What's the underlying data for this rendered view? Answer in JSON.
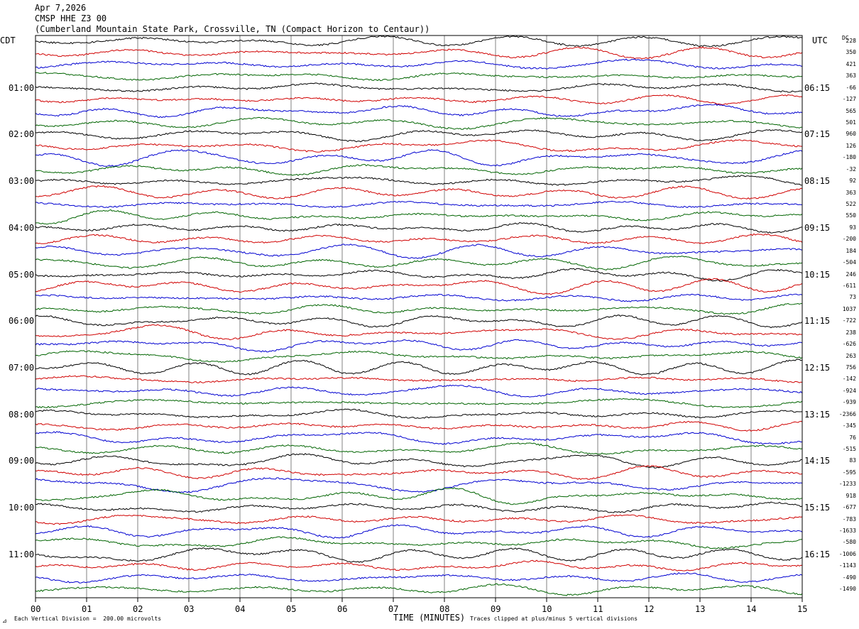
{
  "header": {
    "date": "Apr 7,2026",
    "station": "CMSP HHE Z3 00",
    "location": "(Cumberland Mountain State Park, Crossville, TN (Compact Horizon to Centaur))"
  },
  "left_axis_title": "CDT",
  "right_axis_title": "UTC",
  "dc_title": "DC",
  "footer": {
    "scale_note": "Each Vertical Division =  200.00 microvolts",
    "x_title": "TIME (MINUTES)",
    "clip_note": "Traces clipped at plus/minus 5 vertical divisions"
  },
  "chart_data": {
    "type": "line",
    "subtype": "helicorder",
    "xlabel": "TIME (MINUTES)",
    "xlim": [
      0,
      15
    ],
    "x_ticks": [
      "00",
      "01",
      "02",
      "03",
      "04",
      "05",
      "06",
      "07",
      "08",
      "09",
      "10",
      "11",
      "12",
      "13",
      "14",
      "15"
    ],
    "trace_colors": [
      "#000000",
      "#d00000",
      "#0000d0",
      "#006400"
    ],
    "grid": "vertical lines at each minute",
    "trace_count": 48,
    "cdt_labels": [
      "01:00",
      "02:00",
      "03:00",
      "04:00",
      "05:00",
      "06:00",
      "07:00",
      "08:00",
      "09:00",
      "10:00",
      "11:00"
    ],
    "utc_labels": [
      "06:15",
      "07:15",
      "08:15",
      "09:15",
      "10:15",
      "11:15",
      "12:15",
      "13:15",
      "14:15",
      "15:15",
      "16:15"
    ],
    "dc_offsets": [
      "228",
      "350",
      "421",
      "363",
      "-66",
      "-127",
      "565",
      "501",
      "960",
      "126",
      "-180",
      "-32",
      "92",
      "363",
      "522",
      "550",
      "93",
      "-200",
      "184",
      "-504",
      "246",
      "-611",
      "73",
      "1037",
      "-722",
      "238",
      "-626",
      "263",
      "756",
      "-142",
      "-924",
      "-939",
      "-2366",
      "-345",
      "76",
      "-515",
      "83",
      "-595",
      "-1233",
      "918",
      "-677",
      "-783",
      "-1633",
      "-580",
      "-1006",
      "-1143",
      "-490",
      "-1490"
    ]
  }
}
